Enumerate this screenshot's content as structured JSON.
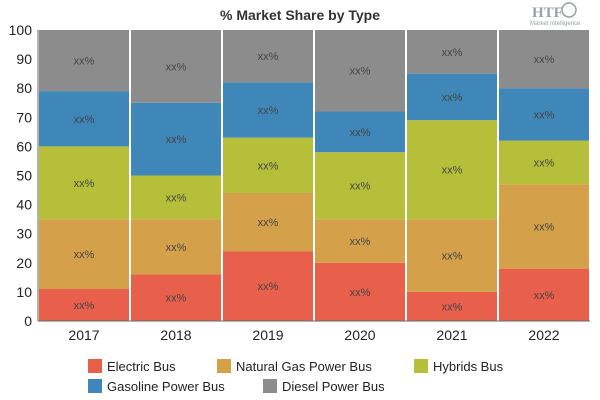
{
  "logo": {
    "text": "HTF",
    "subtitle": "Market Intelligence"
  },
  "chart_data": {
    "type": "bar",
    "stacked": true,
    "title": "% Market Share by Type",
    "xlabel": "",
    "ylabel": "",
    "ylim": [
      0,
      100
    ],
    "yticks": [
      "0",
      "10",
      "20",
      "30",
      "40",
      "50",
      "60",
      "70",
      "80",
      "90",
      "100"
    ],
    "categories": [
      "2017",
      "2018",
      "2019",
      "2020",
      "2021",
      "2022"
    ],
    "value_label": "xx%",
    "grid": false,
    "legend_position": "bottom",
    "series": [
      {
        "name": "Electric Bus",
        "color": "#e8604c",
        "values": [
          11,
          16,
          24,
          20,
          10,
          18
        ]
      },
      {
        "name": "Natural Gas Power Bus",
        "color": "#d4a04a",
        "values": [
          24,
          19,
          20,
          15,
          25,
          29
        ]
      },
      {
        "name": "Hybrids Bus",
        "color": "#b5bf3a",
        "values": [
          25,
          15,
          19,
          23,
          34,
          15
        ]
      },
      {
        "name": "Gasoline Power Bus",
        "color": "#3f87b9",
        "values": [
          19,
          25,
          19,
          14,
          16,
          18
        ]
      },
      {
        "name": "Diesel Power Bus",
        "color": "#8c8c8c",
        "values": [
          21,
          25,
          18,
          28,
          15,
          20
        ]
      }
    ]
  }
}
